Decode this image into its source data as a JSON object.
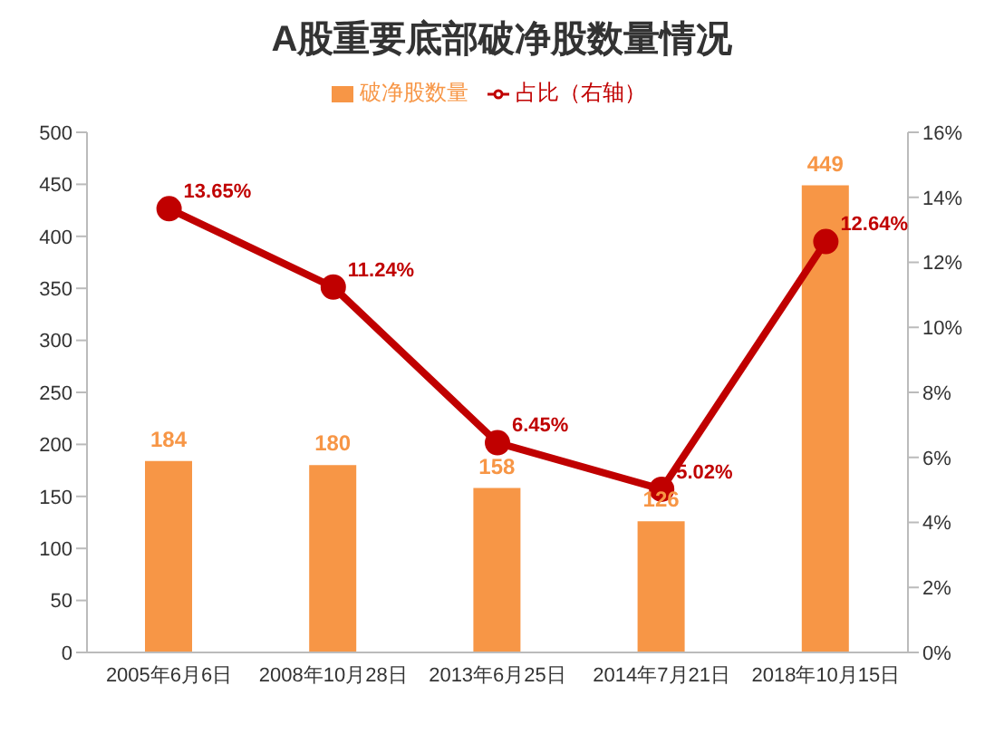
{
  "chart_data": {
    "type": "bar",
    "title": "A股重要底部破净股数量情况",
    "categories": [
      "2005年6月6日",
      "2008年10月28日",
      "2013年6月25日",
      "2014年7月21日",
      "2018年10月15日"
    ],
    "series": [
      {
        "name": "破净股数量",
        "color": "#f79646",
        "values": [
          184,
          180,
          158,
          126,
          449
        ],
        "value_labels": [
          "184",
          "180",
          "158",
          "126",
          "449"
        ]
      },
      {
        "name": "占比（右轴）",
        "type": "line",
        "axis": "y2",
        "color": "#c00000",
        "values": [
          13.65,
          11.24,
          6.45,
          5.02,
          12.64
        ],
        "value_labels": [
          "13.65%",
          "11.24%",
          "6.45%",
          "5.02%",
          "12.64%"
        ]
      }
    ],
    "ylim": [
      0,
      500
    ],
    "yticks": [
      0,
      50,
      100,
      150,
      200,
      250,
      300,
      350,
      400,
      450,
      500
    ],
    "y2lim": [
      0,
      16
    ],
    "y2ticks": [
      {
        "value": 0,
        "label": "0%"
      },
      {
        "value": 2,
        "label": "2%"
      },
      {
        "value": 4,
        "label": "4%"
      },
      {
        "value": 6,
        "label": "6%"
      },
      {
        "value": 8,
        "label": "8%"
      },
      {
        "value": 10,
        "label": "10%"
      },
      {
        "value": 12,
        "label": "12%"
      },
      {
        "value": 14,
        "label": "14%"
      },
      {
        "value": 16,
        "label": "16%"
      }
    ],
    "legend": "top",
    "marker": "circle",
    "line_style": "solid"
  }
}
